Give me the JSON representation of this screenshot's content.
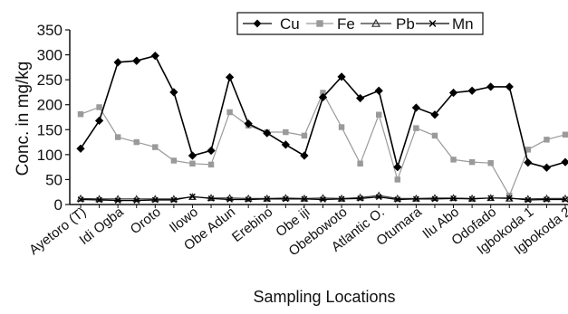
{
  "chart_data": {
    "type": "line",
    "xlabel": "Sampling Locations",
    "ylabel": "Conc. in mg/kg",
    "ylim": [
      0,
      350
    ],
    "yticks": [
      0,
      50,
      100,
      150,
      200,
      250,
      300,
      350
    ],
    "grid": false,
    "legend_position": "top-right",
    "x_tick_labels": [
      "Ayetoro (T)",
      "Idi Ogba",
      "Oroto",
      "Ilowo",
      "Obe Adun",
      "Erebino",
      "Obe iji",
      "Obebowoto",
      "Atlantic O.",
      "Otumara",
      "Ilu Abo",
      "Odofado",
      "Igbokoda 1",
      "Igbokoda 2"
    ],
    "x_tick_points": [
      0,
      2,
      4,
      6,
      8,
      10,
      12,
      14,
      16,
      18,
      20,
      22,
      24,
      26
    ],
    "point_count": 27,
    "series": [
      {
        "name": "Cu",
        "color": "#000000",
        "marker": "diamond",
        "values": [
          112,
          168,
          285,
          288,
          298,
          225,
          98,
          108,
          255,
          162,
          143,
          120,
          98,
          215,
          256,
          213,
          228,
          75,
          194,
          180,
          224,
          228,
          236,
          236,
          84,
          74,
          85
        ]
      },
      {
        "name": "Fe",
        "color": "#9a9a9a",
        "marker": "square",
        "values": [
          181,
          195,
          135,
          125,
          115,
          88,
          82,
          80,
          185,
          158,
          145,
          145,
          138,
          224,
          155,
          82,
          180,
          50,
          153,
          138,
          90,
          85,
          83,
          18,
          110,
          130,
          140
        ]
      },
      {
        "name": "Pb",
        "color": "#333333",
        "marker": "triangle",
        "values": [
          12,
          11,
          11,
          11,
          11,
          11,
          15,
          13,
          13,
          12,
          12,
          13,
          12,
          13,
          12,
          14,
          18,
          12,
          12,
          13,
          13,
          12,
          13,
          12,
          11,
          12,
          12
        ]
      },
      {
        "name": "Mn",
        "color": "#000000",
        "marker": "x",
        "values": [
          10,
          9,
          8,
          8,
          9,
          9,
          16,
          12,
          10,
          10,
          11,
          11,
          11,
          10,
          11,
          12,
          15,
          10,
          11,
          11,
          12,
          11,
          13,
          13,
          9,
          10,
          10
        ]
      }
    ]
  }
}
